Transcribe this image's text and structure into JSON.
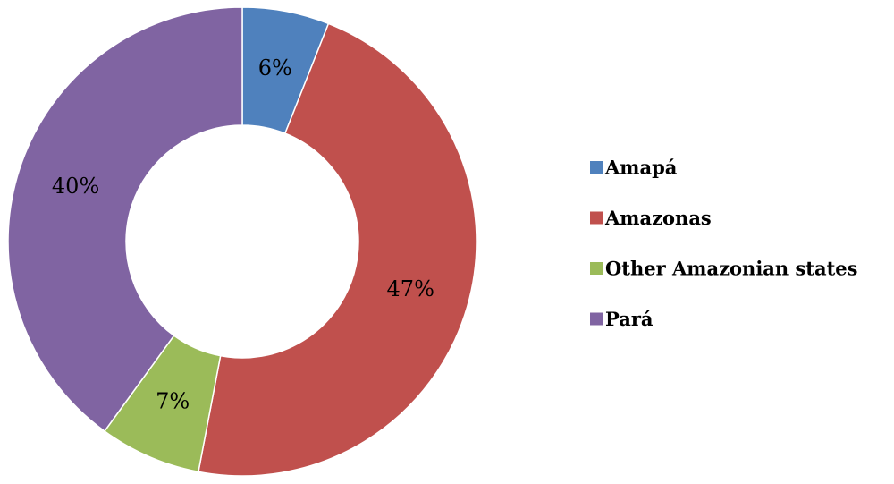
{
  "chart_data": {
    "type": "donut",
    "categories": [
      "Amapá",
      "Amazonas",
      "Other Amazonian states",
      "Pará"
    ],
    "values": [
      6,
      47,
      7,
      40
    ],
    "value_labels": [
      "6%",
      "47%",
      "7%",
      "40%"
    ],
    "colors": [
      "#4f81bd",
      "#c0504d",
      "#9bbb59",
      "#8064a2"
    ],
    "legend": "right"
  }
}
